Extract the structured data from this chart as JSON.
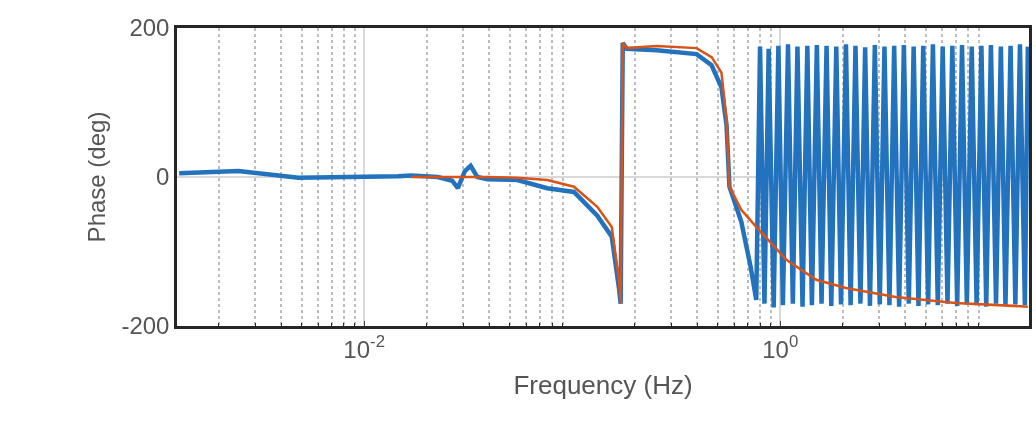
{
  "chart_data": {
    "type": "line",
    "xlabel": "Frequency (Hz)",
    "ylabel": "Phase (deg)",
    "log": "x",
    "grid": true,
    "marker": "none",
    "line_style": "solid",
    "xlim": [
      0.00126,
      15.7
    ],
    "xticks": [
      {
        "value": 0.01,
        "label": "10$^{-2}$"
      },
      {
        "value": 1,
        "label": "10$^{0}$"
      }
    ],
    "ylim": [
      -200,
      200
    ],
    "yticks": [
      -200,
      0,
      200
    ],
    "series": [
      {
        "color": "#2372be",
        "x": [
          0.00129,
          0.00249,
          0.00483,
          0.00838,
          0.01456,
          0.0168,
          0.0226,
          0.0265,
          0.0282,
          0.0305,
          0.0325,
          0.035,
          0.0392,
          0.0545,
          0.0759,
          0.102,
          0.132,
          0.155,
          0.168,
          0.171,
          0.175,
          0.183,
          0.255,
          0.396,
          0.468,
          0.522,
          0.552,
          0.57,
          0.65,
          0.72,
          0.767,
          0.8,
          0.84,
          0.88,
          0.93,
          0.98,
          1.03,
          1.09,
          1.15,
          1.21,
          1.28,
          1.35,
          1.42,
          1.5,
          1.58,
          1.67,
          1.76,
          1.86,
          1.96,
          2.07,
          2.18,
          2.3,
          2.43,
          2.56,
          2.7,
          2.85,
          3.01,
          3.17,
          3.35,
          3.53,
          3.73,
          3.93,
          4.15,
          4.38,
          4.62,
          4.87,
          5.14,
          5.42,
          5.72,
          6.04,
          6.37,
          6.72,
          7.09,
          7.48,
          7.89,
          8.33,
          8.79,
          9.27,
          9.78,
          10.3,
          10.9,
          11.5,
          12.1,
          12.8,
          13.5,
          14.2,
          15.0,
          15.5
        ],
        "values": [
          5,
          8,
          -1,
          0,
          1,
          2,
          0,
          -5,
          -15,
          8,
          15,
          0,
          -3,
          -4,
          -15,
          -20,
          -52,
          -80,
          -150,
          -170,
          180,
          172,
          170,
          165,
          150,
          120,
          70,
          -13,
          -60,
          -120,
          -165,
          175,
          -170,
          172,
          -175,
          176,
          -172,
          178,
          -170,
          175,
          -174,
          176,
          -172,
          177,
          -170,
          176,
          -173,
          175,
          -171,
          178,
          -172,
          176,
          -170,
          174,
          -173,
          177,
          -171,
          175,
          -172,
          176,
          -174,
          177,
          -170,
          175,
          -173,
          176,
          -171,
          178,
          -172,
          175,
          -170,
          176,
          -173,
          177,
          -171,
          175,
          -172,
          176,
          -174,
          177,
          -170,
          175,
          -173,
          176,
          -171,
          178,
          -172,
          175
        ]
      },
      {
        "color": "#d95319",
        "x": [
          0.0168,
          0.0392,
          0.0545,
          0.0759,
          0.102,
          0.132,
          0.155,
          0.168,
          0.171,
          0.175,
          0.183,
          0.255,
          0.396,
          0.468,
          0.522,
          0.552,
          0.57,
          0.65,
          0.767,
          1.07,
          1.49,
          2.07,
          3.59,
          6.95,
          15.5
        ],
        "values": [
          0,
          0,
          -1,
          -4,
          -13,
          -40,
          -67,
          -140,
          -170,
          180,
          173,
          176,
          173,
          161,
          140,
          77,
          -13,
          -44,
          -67,
          -111,
          -138,
          -149,
          -161,
          -169,
          -174
        ]
      }
    ]
  }
}
